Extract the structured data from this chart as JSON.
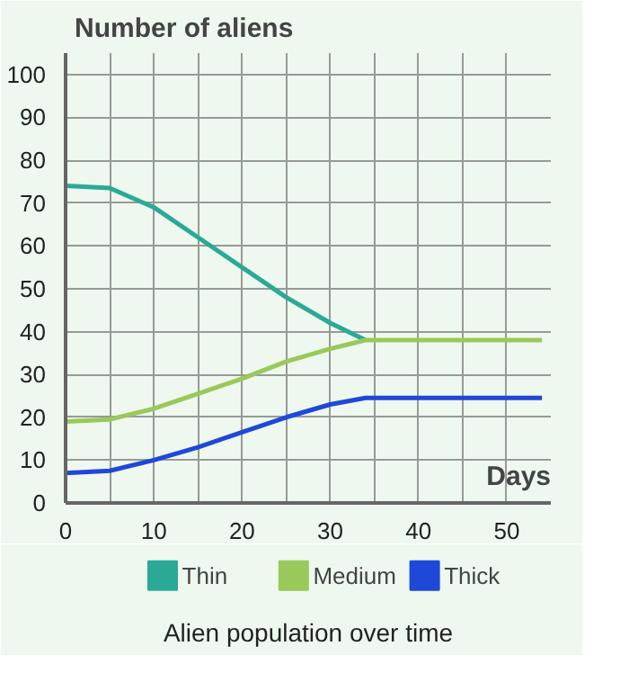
{
  "chart_data": {
    "type": "line",
    "title": "Alien population over time",
    "xlabel": "Days",
    "ylabel": "Number of aliens",
    "x": [
      0,
      5,
      10,
      15,
      20,
      25,
      30,
      34,
      40,
      45,
      50,
      54
    ],
    "series": [
      {
        "name": "Thin",
        "color": "#2aaa96",
        "values": [
          74,
          73.5,
          69,
          62,
          55,
          48,
          42,
          38,
          null,
          null,
          null,
          null
        ]
      },
      {
        "name": "Medium",
        "color": "#99c95a",
        "values": [
          19,
          19.5,
          22,
          25.5,
          29,
          33,
          36,
          38,
          38,
          38,
          38,
          38
        ]
      },
      {
        "name": "Thick",
        "color": "#1f48d8",
        "values": [
          7,
          7.5,
          10,
          13,
          16.5,
          20,
          23,
          24.5,
          24.5,
          24.5,
          24.5,
          24.5
        ]
      }
    ],
    "xlim": [
      0,
      55
    ],
    "ylim": [
      0,
      105
    ],
    "xticks": [
      0,
      {
        "value": 5,
        "label": null
      },
      10,
      {
        "value": 15,
        "label": null
      },
      20,
      {
        "value": 25,
        "label": null
      },
      30,
      {
        "value": 35,
        "label": null
      },
      40,
      {
        "value": 45,
        "label": null
      },
      50
    ],
    "yticks": [
      0,
      10,
      20,
      30,
      40,
      50,
      60,
      70,
      80,
      90,
      100
    ],
    "grid": true,
    "legend": "bottom",
    "marker": "none",
    "line_style": "solid"
  }
}
